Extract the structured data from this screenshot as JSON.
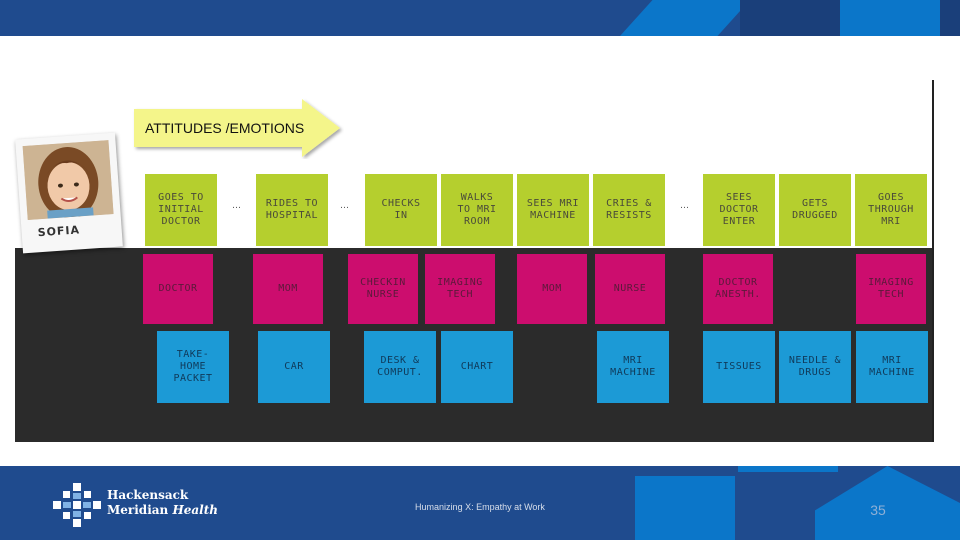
{
  "header_banner": {
    "label": "ATTITUDES /EMOTIONS"
  },
  "persona": {
    "name": "SOFIA"
  },
  "steps": [
    {
      "label": "GOES TO\nINITIAL\nDOCTOR"
    },
    {
      "label": "RIDES TO\nHOSPITAL"
    },
    {
      "label": "CHECKS\nIN"
    },
    {
      "label": "WALKS\nTO MRI\nROOM"
    },
    {
      "label": "SEES MRI\nMACHINE"
    },
    {
      "label": "CRIES &\nRESISTS"
    },
    {
      "label": "SEES\nDOCTOR\nENTER"
    },
    {
      "label": "GETS\nDRUGGED"
    },
    {
      "label": "GOES\nTHROUGH\nMRI"
    }
  ],
  "ellipses": [
    "…",
    "…",
    "…"
  ],
  "people": [
    {
      "label": "DOCTOR"
    },
    {
      "label": "MOM"
    },
    {
      "label": "CHECKIN\nNURSE"
    },
    {
      "label": "IMAGING\nTECH"
    },
    {
      "label": "MOM"
    },
    {
      "label": "NURSE"
    },
    {
      "label": "DOCTOR\nANESTH."
    },
    {
      "label": "IMAGING\nTECH"
    }
  ],
  "objects": [
    {
      "label": "TAKE-\nHOME\nPACKET"
    },
    {
      "label": "CAR"
    },
    {
      "label": "DESK &\nCOMPUT."
    },
    {
      "label": "CHART"
    },
    {
      "label": "MRI\nMACHINE"
    },
    {
      "label": "TISSUES"
    },
    {
      "label": "NEEDLE &\nDRUGS"
    },
    {
      "label": "MRI\nMACHINE"
    }
  ],
  "footer": {
    "brand_line1": "Hackensack",
    "brand_line2a": "Meridian",
    "brand_line2b": "Health",
    "caption": "Humanizing X: Empathy at Work",
    "page_number": "35"
  },
  "colors": {
    "green_note": "#b5cf2e",
    "pink_note": "#cc0d6e",
    "blue_note": "#1c9ad6",
    "brand_blue": "#1f4b8e",
    "accent_blue": "#0b76c9"
  }
}
